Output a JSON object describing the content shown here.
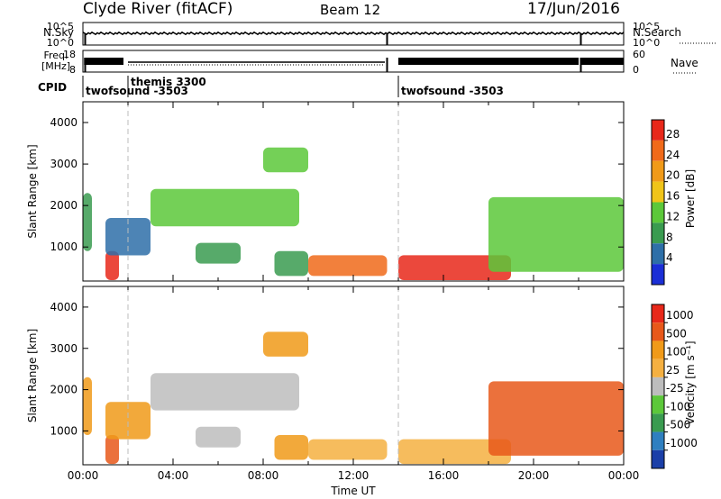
{
  "header": {
    "title": "Clyde River (fitACF)",
    "beam": "Beam 12",
    "date": "17/Jun/2016"
  },
  "top_panels": {
    "nsky_label": "N.Sky",
    "nsearch_label": "N.Search",
    "nsky_ticks": [
      "10^5",
      "10^0"
    ],
    "nsearch_ticks": [
      "10^5",
      "10^0"
    ],
    "freq_label_1": "Freq.",
    "freq_label_2": "[MHz]",
    "freq_ticks": [
      "18",
      "8"
    ],
    "nave_label": "Nave",
    "nave_ticks": [
      "60",
      "0"
    ],
    "cpid_label": "CPID",
    "cpid_entries": [
      {
        "name": "twofsound -3503",
        "start": 0.0,
        "end": 2.0
      },
      {
        "name": "themis 3300",
        "start": 2.0,
        "end": 13.5
      },
      {
        "name": "twofsound -3503",
        "start": 14.0,
        "end": 24.0
      }
    ]
  },
  "chart_data": [
    {
      "type": "heatmap",
      "name": "power",
      "ylabel": "Slant Range [km]",
      "xlabel": "",
      "xlim": [
        0,
        24
      ],
      "ylim": [
        180,
        4500
      ],
      "yticks": [
        "1000",
        "2000",
        "3000",
        "4000"
      ],
      "colorbar_label": "Power [dB]",
      "colorbar_ticks": [
        "4",
        "8",
        "12",
        "16",
        "20",
        "24",
        "28"
      ],
      "colorbar_colors": [
        "#1b2fd6",
        "#2e6fa8",
        "#3a9b50",
        "#5cc83a",
        "#f0c419",
        "#f09a19",
        "#f06a1a",
        "#e8281a"
      ],
      "features": [
        {
          "t0": 0.0,
          "t1": 0.4,
          "r0": 900,
          "r1": 2300,
          "level": 2
        },
        {
          "t0": 1.0,
          "t1": 1.6,
          "r0": 200,
          "r1": 900,
          "level": 7
        },
        {
          "t0": 1.0,
          "t1": 3.0,
          "r0": 800,
          "r1": 1700,
          "level": 1
        },
        {
          "t0": 3.0,
          "t1": 9.6,
          "r0": 1500,
          "r1": 2400,
          "level": 3
        },
        {
          "t0": 5.0,
          "t1": 7.0,
          "r0": 600,
          "r1": 1100,
          "level": 2
        },
        {
          "t0": 8.0,
          "t1": 10.0,
          "r0": 2800,
          "r1": 3400,
          "level": 3
        },
        {
          "t0": 8.5,
          "t1": 10.0,
          "r0": 300,
          "r1": 900,
          "level": 2
        },
        {
          "t0": 10.0,
          "t1": 13.5,
          "r0": 300,
          "r1": 800,
          "level": 6
        },
        {
          "t0": 14.0,
          "t1": 19.0,
          "r0": 200,
          "r1": 800,
          "level": 7
        },
        {
          "t0": 18.0,
          "t1": 24.0,
          "r0": 400,
          "r1": 2200,
          "level": 3
        }
      ]
    },
    {
      "type": "heatmap",
      "name": "velocity",
      "ylabel": "Slant Range [km]",
      "xlabel": "Time UT",
      "xlim": [
        0,
        24
      ],
      "ylim": [
        180,
        4500
      ],
      "xticks": [
        "00:00",
        "04:00",
        "08:00",
        "12:00",
        "16:00",
        "20:00",
        "00:00"
      ],
      "yticks": [
        "1000",
        "2000",
        "3000",
        "4000"
      ],
      "colorbar_label": "Velocity [m s⁻¹]",
      "colorbar_ticks": [
        "1000",
        "500",
        "100",
        "25",
        "-25",
        "-100",
        "-500",
        "-1000"
      ],
      "colorbar_colors": [
        "#1b3fa8",
        "#2f7fc0",
        "#3a9b50",
        "#5cc83a",
        "#bdbdbd",
        "#f5b041",
        "#f09a19",
        "#e8581a",
        "#e8281a"
      ],
      "features": [
        {
          "t0": 0.0,
          "t1": 0.4,
          "r0": 900,
          "r1": 2300,
          "level": 6
        },
        {
          "t0": 1.0,
          "t1": 1.6,
          "r0": 200,
          "r1": 900,
          "level": 7
        },
        {
          "t0": 1.0,
          "t1": 3.0,
          "r0": 800,
          "r1": 1700,
          "level": 6
        },
        {
          "t0": 3.0,
          "t1": 9.6,
          "r0": 1500,
          "r1": 2400,
          "level": 4
        },
        {
          "t0": 5.0,
          "t1": 7.0,
          "r0": 600,
          "r1": 1100,
          "level": 4
        },
        {
          "t0": 8.0,
          "t1": 10.0,
          "r0": 2800,
          "r1": 3400,
          "level": 6
        },
        {
          "t0": 8.5,
          "t1": 10.0,
          "r0": 300,
          "r1": 900,
          "level": 6
        },
        {
          "t0": 10.0,
          "t1": 13.5,
          "r0": 300,
          "r1": 800,
          "level": 5
        },
        {
          "t0": 14.0,
          "t1": 19.0,
          "r0": 200,
          "r1": 800,
          "level": 5
        },
        {
          "t0": 18.0,
          "t1": 24.0,
          "r0": 400,
          "r1": 2200,
          "level": 7
        }
      ]
    }
  ]
}
